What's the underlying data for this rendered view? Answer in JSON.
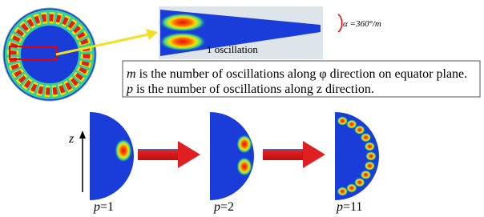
{
  "wedge": {
    "angle_label": "α =360°/m",
    "caption": "1 oscillation"
  },
  "definitions": [
    {
      "var": "m",
      "text": " is the number of oscillations along φ direction on equator plane."
    },
    {
      "var": "p",
      "text": " is the number of oscillations along z direction."
    }
  ],
  "axis_label": "z",
  "modes": [
    {
      "var": "p",
      "text": "=1"
    },
    {
      "var": "p",
      "text": "=2"
    },
    {
      "var": "p",
      "text": "=11"
    }
  ]
}
